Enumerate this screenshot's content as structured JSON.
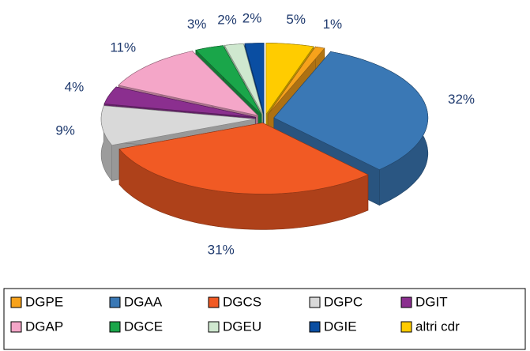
{
  "chart_data": {
    "type": "pie3d",
    "categories": [
      "DGPE",
      "DGAA",
      "DGCS",
      "DGPC",
      "DGIT",
      "DGAP",
      "DGCE",
      "DGEU",
      "DGIE",
      "altri cdr"
    ],
    "values": [
      1,
      32,
      31,
      9,
      4,
      11,
      3,
      2,
      2,
      5
    ],
    "value_labels": [
      "1%",
      "32%",
      "31%",
      "9%",
      "4%",
      "11%",
      "3%",
      "2%",
      "2%",
      "5%"
    ],
    "colors": [
      "#f7a21b",
      "#3a78b5",
      "#f15a24",
      "#d9d9d9",
      "#8b2f8f",
      "#f4a6c8",
      "#1aa64a",
      "#cfe8cf",
      "#0a4ea2",
      "#ffcc00"
    ],
    "legend": "bottom"
  }
}
